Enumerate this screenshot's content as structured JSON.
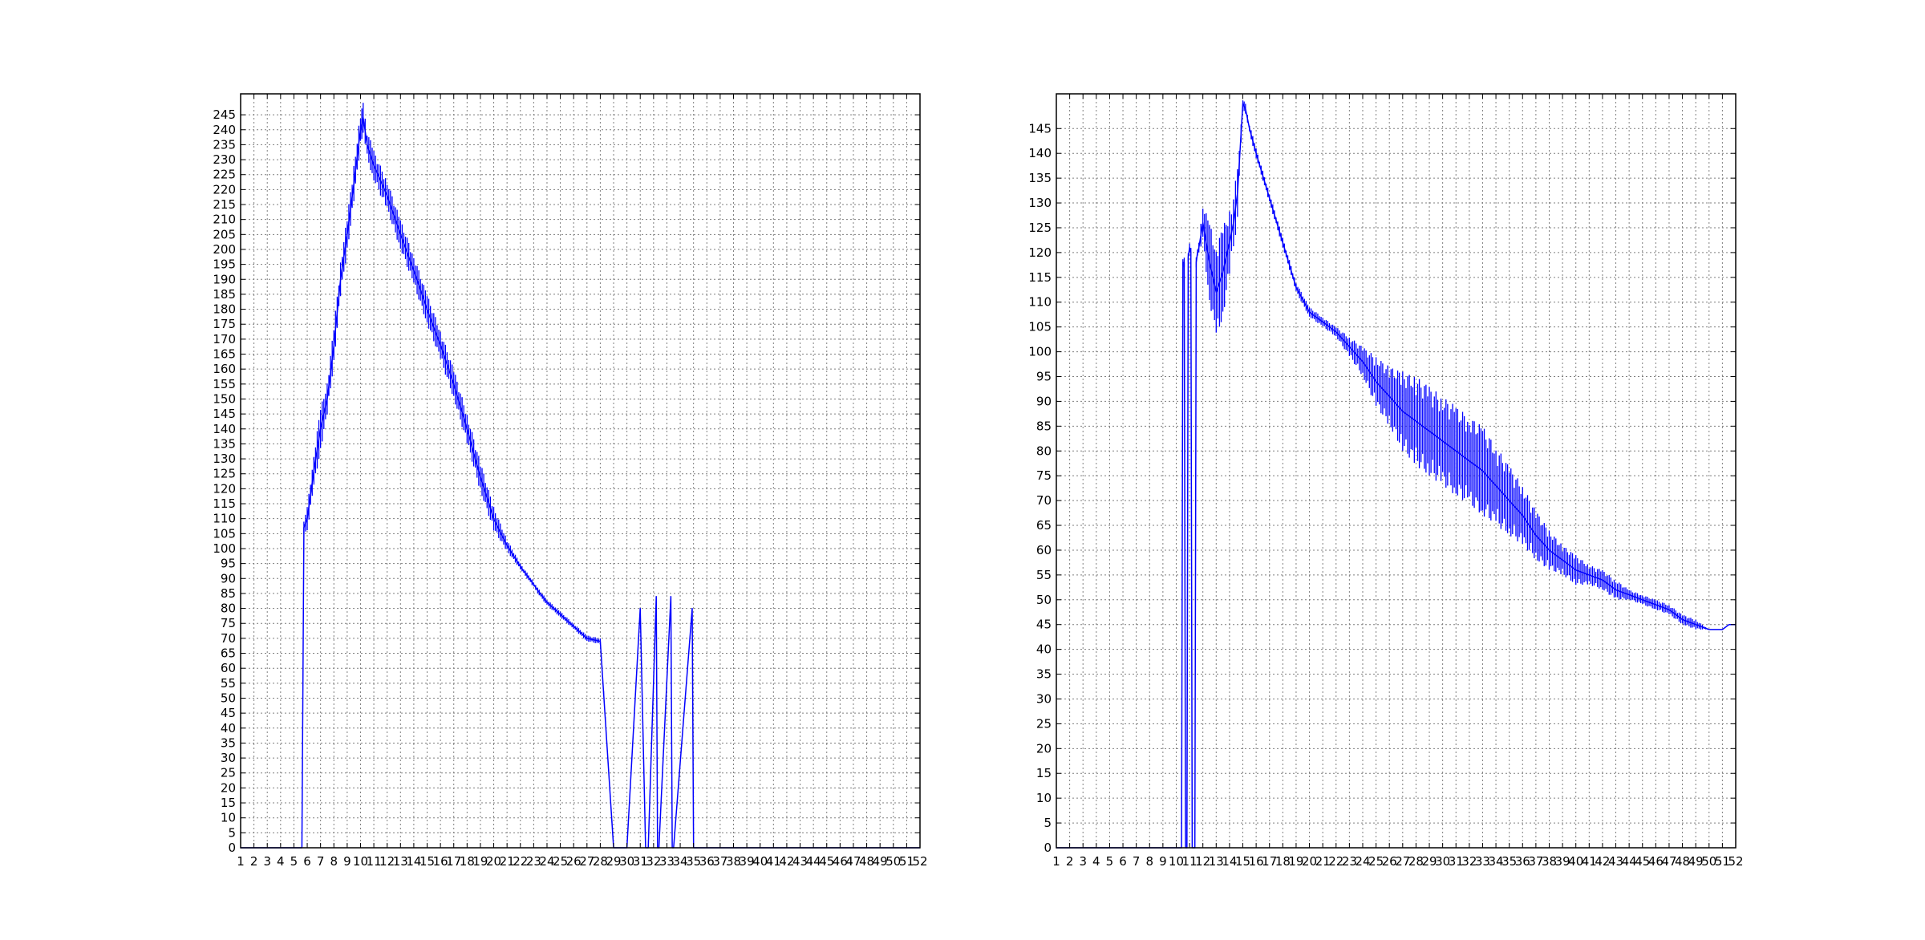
{
  "figure": {
    "background": "#ffffff",
    "series_color": "#0000ff",
    "grid_color": "#7f7f7f",
    "grid": true,
    "grid_style": "dotted"
  },
  "chart_data": [
    {
      "type": "line",
      "title": "",
      "xlabel": "",
      "ylabel": "",
      "xlim": [
        1,
        52
      ],
      "ylim": [
        0,
        252
      ],
      "xticks": [
        1,
        2,
        3,
        4,
        5,
        6,
        7,
        8,
        9,
        10,
        11,
        12,
        13,
        14,
        15,
        16,
        17,
        18,
        19,
        20,
        21,
        22,
        23,
        24,
        25,
        26,
        27,
        28,
        29,
        30,
        31,
        32,
        33,
        34,
        35,
        36,
        37,
        38,
        39,
        40,
        41,
        42,
        43,
        44,
        45,
        46,
        47,
        48,
        49,
        50,
        51,
        52
      ],
      "yticks": [
        0,
        5,
        10,
        15,
        20,
        25,
        30,
        35,
        40,
        45,
        50,
        55,
        60,
        65,
        70,
        75,
        80,
        85,
        90,
        95,
        100,
        105,
        110,
        115,
        120,
        125,
        130,
        135,
        140,
        145,
        150,
        155,
        160,
        165,
        170,
        175,
        180,
        185,
        190,
        195,
        200,
        205,
        210,
        215,
        220,
        225,
        230,
        235,
        240,
        245
      ],
      "series": [
        {
          "color": "#0000ff",
          "x": [
            1,
            5.6,
            5.75,
            6,
            6.5,
            7,
            7.5,
            8,
            8.5,
            9,
            9.5,
            10,
            10.2,
            10.5,
            11,
            12,
            13,
            14,
            15,
            16,
            17,
            18,
            19,
            20,
            21,
            22,
            23,
            23.3,
            24,
            25,
            26,
            27,
            28,
            29,
            30,
            31,
            31.4,
            31.6,
            32.2,
            32.3,
            32.4,
            33.3,
            33.4,
            33.5,
            34.9,
            35,
            35.1,
            35.8,
            35.9,
            36,
            52
          ],
          "y": [
            0,
            0,
            107,
            110,
            126,
            140,
            150,
            168,
            190,
            205,
            222,
            240,
            244,
            235,
            228,
            218,
            205,
            193,
            180,
            168,
            155,
            140,
            124,
            110,
            101,
            94,
            88,
            86,
            82,
            78,
            74,
            70,
            69,
            0,
            0,
            80,
            0,
            0,
            84,
            0,
            0,
            84,
            0,
            0,
            80,
            0,
            0,
            0,
            0,
            0,
            0
          ],
          "band": [
            0,
            0,
            3,
            4,
            6,
            7,
            6,
            6,
            6,
            6,
            6,
            6,
            5,
            5,
            5,
            5,
            5,
            5,
            5,
            5,
            5,
            5,
            5,
            4,
            2,
            1,
            1,
            1,
            1,
            1,
            1,
            1,
            1,
            0,
            0,
            0,
            0,
            0,
            0,
            0,
            0,
            0,
            0,
            0,
            0,
            0,
            0,
            0,
            0,
            0,
            0
          ]
        }
      ]
    },
    {
      "type": "line",
      "title": "",
      "xlabel": "",
      "ylabel": "",
      "xlim": [
        1,
        52
      ],
      "ylim": [
        0,
        152
      ],
      "xticks": [
        1,
        2,
        3,
        4,
        5,
        6,
        7,
        8,
        9,
        10,
        11,
        12,
        13,
        14,
        15,
        16,
        17,
        18,
        19,
        20,
        21,
        22,
        23,
        24,
        25,
        26,
        27,
        28,
        29,
        30,
        31,
        32,
        33,
        34,
        35,
        36,
        37,
        38,
        39,
        40,
        41,
        42,
        43,
        44,
        45,
        46,
        47,
        48,
        49,
        50,
        51,
        52
      ],
      "yticks": [
        0,
        5,
        10,
        15,
        20,
        25,
        30,
        35,
        40,
        45,
        50,
        55,
        60,
        65,
        70,
        75,
        80,
        85,
        90,
        95,
        100,
        105,
        110,
        115,
        120,
        125,
        130,
        135,
        140,
        145
      ],
      "series": [
        {
          "color": "#0000ff",
          "x": [
            1,
            10.4,
            10.5,
            10.6,
            10.7,
            10.8,
            10.9,
            11,
            11.1,
            11.2,
            11.3,
            11.4,
            11.5,
            11.6,
            11.7,
            12,
            12.5,
            13,
            13.5,
            14,
            14.3,
            14.6,
            15,
            15.2,
            15.5,
            16,
            17,
            18,
            19,
            20,
            21,
            22,
            23,
            24,
            25,
            26,
            27,
            28,
            29,
            30,
            31,
            32,
            33,
            34,
            35,
            36,
            37,
            38,
            39,
            40,
            41,
            42,
            43,
            44,
            45,
            46,
            47,
            48,
            49,
            50,
            51,
            51.5,
            52
          ],
          "y": [
            0,
            0,
            118,
            118,
            0,
            0,
            119,
            121,
            120,
            0,
            0,
            0,
            118,
            120,
            121,
            126,
            118,
            112,
            116,
            122,
            126,
            132,
            150,
            149,
            145,
            140,
            131,
            122,
            113,
            108,
            106,
            104,
            101,
            98,
            94,
            91,
            88,
            86,
            84,
            82,
            80,
            78,
            76,
            73,
            70,
            67,
            63,
            60,
            58,
            56,
            55,
            54,
            52,
            51,
            50,
            49,
            48,
            46,
            45,
            44,
            44,
            45,
            45
          ],
          "band": [
            0,
            0,
            1,
            1,
            0,
            0,
            1,
            1,
            1,
            0,
            0,
            0,
            1,
            1,
            1,
            4,
            8,
            10,
            9,
            7,
            6,
            5,
            1,
            1,
            1,
            1,
            1,
            1,
            1,
            1,
            1,
            1,
            2,
            3,
            5,
            6,
            8,
            9,
            9,
            9,
            9,
            9,
            9,
            8,
            7,
            6,
            5,
            4,
            3,
            3,
            2,
            2,
            2,
            1,
            1,
            1,
            1,
            1,
            1,
            0,
            0,
            0,
            0
          ]
        }
      ]
    }
  ]
}
